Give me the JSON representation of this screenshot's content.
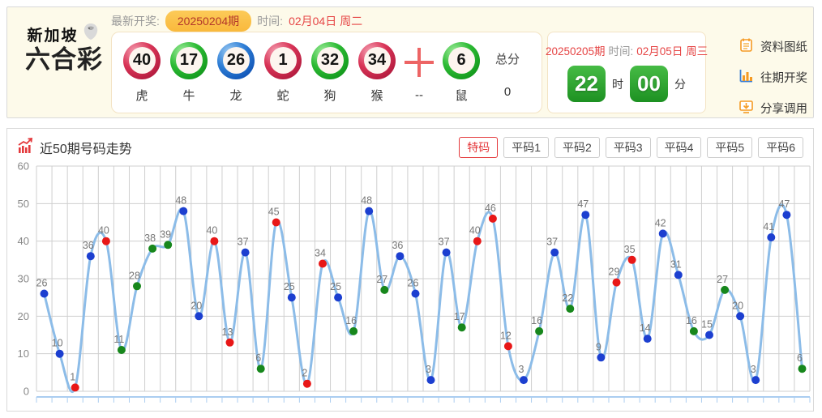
{
  "header": {
    "logo": {
      "line1": "新加坡",
      "line2": "六合彩"
    },
    "latest": {
      "label": "最新开奖:",
      "issue_badge": "20250204期",
      "time_label": "时间:",
      "time_value": "02月04日 周二"
    },
    "balls": [
      {
        "num": "40",
        "color": "red",
        "zodiac": "虎"
      },
      {
        "num": "17",
        "color": "green",
        "zodiac": "牛"
      },
      {
        "num": "26",
        "color": "blue",
        "zodiac": "龙"
      },
      {
        "num": "1",
        "color": "red",
        "zodiac": "蛇"
      },
      {
        "num": "32",
        "color": "green",
        "zodiac": "狗"
      },
      {
        "num": "34",
        "color": "red",
        "zodiac": "猴"
      }
    ],
    "plus_label": "--",
    "special_ball": {
      "num": "6",
      "color": "green",
      "zodiac": "鼠"
    },
    "total": {
      "label": "总分",
      "value": "0"
    },
    "next": {
      "issue": "20250205期",
      "time_label": "时间:",
      "time_value": "02月05日 周三",
      "hours": "22",
      "hours_unit": "时",
      "minutes": "00",
      "minutes_unit": "分"
    },
    "links": [
      {
        "label": "资料图纸",
        "icon": "notebook-icon"
      },
      {
        "label": "往期开奖",
        "icon": "bar-chart-icon"
      },
      {
        "label": "分享调用",
        "icon": "share-monitor-icon"
      }
    ]
  },
  "trend": {
    "title": "近50期号码走势",
    "tabs": [
      {
        "label": "特码",
        "active": true
      },
      {
        "label": "平码1",
        "active": false
      },
      {
        "label": "平码2",
        "active": false
      },
      {
        "label": "平码3",
        "active": false
      },
      {
        "label": "平码4",
        "active": false
      },
      {
        "label": "平码5",
        "active": false
      },
      {
        "label": "平码6",
        "active": false
      }
    ]
  },
  "chart_data": {
    "type": "line",
    "title": "近50期号码走势",
    "xlabel": "",
    "ylabel": "",
    "ylim": [
      0,
      60
    ],
    "yticks": [
      0,
      10,
      20,
      30,
      40,
      50,
      60
    ],
    "grid": true,
    "line_color": "#8cbce8",
    "grid_color": "#cfcfcf",
    "axis_color": "#abcdf0",
    "label_color": "#777777",
    "point_colors": {
      "red": "#e81717",
      "blue": "#1c3fd0",
      "green": "#17871c"
    },
    "values": [
      26,
      10,
      1,
      36,
      40,
      11,
      28,
      38,
      39,
      48,
      20,
      40,
      13,
      37,
      6,
      45,
      25,
      2,
      34,
      25,
      16,
      48,
      27,
      36,
      26,
      3,
      37,
      17,
      40,
      46,
      12,
      3,
      16,
      37,
      22,
      47,
      9,
      29,
      35,
      14,
      42,
      31,
      16,
      15,
      27,
      20,
      3,
      41,
      47,
      6
    ],
    "colors": [
      "blue",
      "blue",
      "red",
      "blue",
      "red",
      "green",
      "green",
      "green",
      "green",
      "blue",
      "blue",
      "red",
      "red",
      "blue",
      "green",
      "red",
      "blue",
      "red",
      "red",
      "blue",
      "green",
      "blue",
      "green",
      "blue",
      "blue",
      "blue",
      "blue",
      "green",
      "red",
      "red",
      "red",
      "blue",
      "green",
      "blue",
      "green",
      "blue",
      "blue",
      "red",
      "red",
      "blue",
      "blue",
      "blue",
      "green",
      "blue",
      "green",
      "blue",
      "blue",
      "blue",
      "blue",
      "green"
    ]
  }
}
